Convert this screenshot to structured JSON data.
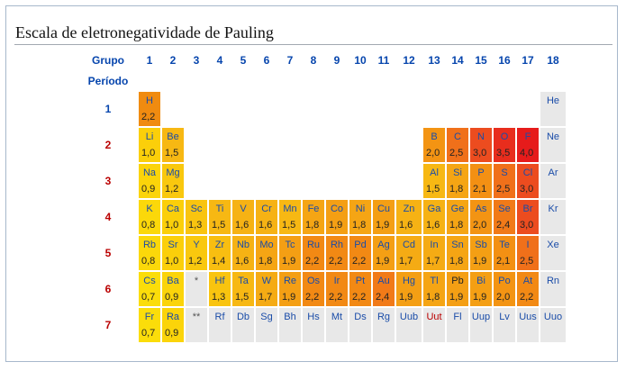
{
  "title": "Escala de eletronegatividade de Pauling",
  "group_header_label": "Grupo",
  "period_header_label": "Período",
  "groups": [
    "1",
    "2",
    "3",
    "4",
    "5",
    "6",
    "7",
    "8",
    "9",
    "10",
    "11",
    "12",
    "13",
    "14",
    "15",
    "16",
    "17",
    "18"
  ],
  "periods": [
    {
      "label": "1",
      "label_color": "#0645ad",
      "cells": [
        {
          "g": 1,
          "sym": "H",
          "val": "2,2",
          "color": "#f08b10"
        },
        {
          "g": 18,
          "sym": "He",
          "val": "",
          "color": "#e8e8e8"
        }
      ]
    },
    {
      "label": "2",
      "label_color": "#ba0000",
      "cells": [
        {
          "g": 1,
          "sym": "Li",
          "val": "1,0",
          "color": "#fbcf0a"
        },
        {
          "g": 2,
          "sym": "Be",
          "val": "1,5",
          "color": "#f7b813"
        },
        {
          "g": 13,
          "sym": "B",
          "val": "2,0",
          "color": "#f39413"
        },
        {
          "g": 14,
          "sym": "C",
          "val": "2,5",
          "color": "#f0701a"
        },
        {
          "g": 15,
          "sym": "N",
          "val": "3,0",
          "color": "#ec4c1f"
        },
        {
          "g": 16,
          "sym": "O",
          "val": "3,5",
          "color": "#e82d1d"
        },
        {
          "g": 17,
          "sym": "F",
          "val": "4,0",
          "color": "#e61b1b"
        },
        {
          "g": 18,
          "sym": "Ne",
          "val": "",
          "color": "#e8e8e8"
        }
      ]
    },
    {
      "label": "3",
      "label_color": "#ba0000",
      "cells": [
        {
          "g": 1,
          "sym": "Na",
          "val": "0,9",
          "color": "#fbd40a"
        },
        {
          "g": 2,
          "sym": "Mg",
          "val": "1,2",
          "color": "#f9c80e"
        },
        {
          "g": 13,
          "sym": "Al",
          "val": "1,5",
          "color": "#f7b813"
        },
        {
          "g": 14,
          "sym": "Si",
          "val": "1,8",
          "color": "#f5a514"
        },
        {
          "g": 15,
          "sym": "P",
          "val": "2,1",
          "color": "#f39013"
        },
        {
          "g": 16,
          "sym": "S",
          "val": "2,5",
          "color": "#f0701a"
        },
        {
          "g": 17,
          "sym": "Cl",
          "val": "3,0",
          "color": "#ec4c1f"
        },
        {
          "g": 18,
          "sym": "Ar",
          "val": "",
          "color": "#e8e8e8"
        }
      ]
    },
    {
      "label": "4",
      "label_color": "#ba0000",
      "cells": [
        {
          "g": 1,
          "sym": "K",
          "val": "0,8",
          "color": "#fbd80a"
        },
        {
          "g": 2,
          "sym": "Ca",
          "val": "1,0",
          "color": "#fbcf0a"
        },
        {
          "g": 3,
          "sym": "Sc",
          "val": "1,3",
          "color": "#f9c40f"
        },
        {
          "g": 4,
          "sym": "Ti",
          "val": "1,5",
          "color": "#f7b813"
        },
        {
          "g": 5,
          "sym": "V",
          "val": "1,6",
          "color": "#f6b214"
        },
        {
          "g": 6,
          "sym": "Cr",
          "val": "1,6",
          "color": "#f6b214"
        },
        {
          "g": 7,
          "sym": "Mn",
          "val": "1,5",
          "color": "#f7b813"
        },
        {
          "g": 8,
          "sym": "Fe",
          "val": "1,8",
          "color": "#f5a514"
        },
        {
          "g": 9,
          "sym": "Co",
          "val": "1,9",
          "color": "#f49f14"
        },
        {
          "g": 10,
          "sym": "Ni",
          "val": "1,8",
          "color": "#f5a514"
        },
        {
          "g": 11,
          "sym": "Cu",
          "val": "1,9",
          "color": "#f49f14"
        },
        {
          "g": 12,
          "sym": "Zn",
          "val": "1,6",
          "color": "#f6b214"
        },
        {
          "g": 13,
          "sym": "Ga",
          "val": "1,6",
          "color": "#f6b214"
        },
        {
          "g": 14,
          "sym": "Ge",
          "val": "1,8",
          "color": "#f5a514"
        },
        {
          "g": 15,
          "sym": "As",
          "val": "2,0",
          "color": "#f39413"
        },
        {
          "g": 16,
          "sym": "Se",
          "val": "2,4",
          "color": "#f17a18"
        },
        {
          "g": 17,
          "sym": "Br",
          "val": "3,0",
          "color": "#ec4c1f"
        },
        {
          "g": 18,
          "sym": "Kr",
          "val": "",
          "color": "#e8e8e8"
        }
      ]
    },
    {
      "label": "5",
      "label_color": "#ba0000",
      "cells": [
        {
          "g": 1,
          "sym": "Rb",
          "val": "0,8",
          "color": "#fbd80a"
        },
        {
          "g": 2,
          "sym": "Sr",
          "val": "1,0",
          "color": "#fbcf0a"
        },
        {
          "g": 3,
          "sym": "Y",
          "val": "1,2",
          "color": "#f9c80e"
        },
        {
          "g": 4,
          "sym": "Zr",
          "val": "1,4",
          "color": "#f8be11"
        },
        {
          "g": 5,
          "sym": "Nb",
          "val": "1,6",
          "color": "#f6b214"
        },
        {
          "g": 6,
          "sym": "Mo",
          "val": "1,8",
          "color": "#f5a514"
        },
        {
          "g": 7,
          "sym": "Tc",
          "val": "1,9",
          "color": "#f49f14"
        },
        {
          "g": 8,
          "sym": "Ru",
          "val": "2,2",
          "color": "#f28914"
        },
        {
          "g": 9,
          "sym": "Rh",
          "val": "2,2",
          "color": "#f28914"
        },
        {
          "g": 10,
          "sym": "Pd",
          "val": "2,2",
          "color": "#f28914"
        },
        {
          "g": 11,
          "sym": "Ag",
          "val": "1,9",
          "color": "#f49f14"
        },
        {
          "g": 12,
          "sym": "Cd",
          "val": "1,7",
          "color": "#f5ab14"
        },
        {
          "g": 13,
          "sym": "In",
          "val": "1,7",
          "color": "#f5ab14"
        },
        {
          "g": 14,
          "sym": "Sn",
          "val": "1,8",
          "color": "#f5a514"
        },
        {
          "g": 15,
          "sym": "Sb",
          "val": "1,9",
          "color": "#f49f14"
        },
        {
          "g": 16,
          "sym": "Te",
          "val": "2,1",
          "color": "#f39013"
        },
        {
          "g": 17,
          "sym": "I",
          "val": "2,5",
          "color": "#f0701a"
        },
        {
          "g": 18,
          "sym": "Xe",
          "val": "",
          "color": "#e8e8e8"
        }
      ]
    },
    {
      "label": "6",
      "label_color": "#ba0000",
      "cells": [
        {
          "g": 1,
          "sym": "Cs",
          "val": "0,7",
          "color": "#fbdd0a"
        },
        {
          "g": 2,
          "sym": "Ba",
          "val": "0,9",
          "color": "#fbd40a"
        },
        {
          "g": 3,
          "sym": "*",
          "val": "",
          "color": "#e8e8e8",
          "star": true
        },
        {
          "g": 4,
          "sym": "Hf",
          "val": "1,3",
          "color": "#f9c40f"
        },
        {
          "g": 5,
          "sym": "Ta",
          "val": "1,5",
          "color": "#f7b813"
        },
        {
          "g": 6,
          "sym": "W",
          "val": "1,7",
          "color": "#f5ab14"
        },
        {
          "g": 7,
          "sym": "Re",
          "val": "1,9",
          "color": "#f49f14"
        },
        {
          "g": 8,
          "sym": "Os",
          "val": "2,2",
          "color": "#f28914"
        },
        {
          "g": 9,
          "sym": "Ir",
          "val": "2,2",
          "color": "#f28914"
        },
        {
          "g": 10,
          "sym": "Pt",
          "val": "2,2",
          "color": "#f28914"
        },
        {
          "g": 11,
          "sym": "Au",
          "val": "2,4",
          "color": "#f17a18"
        },
        {
          "g": 12,
          "sym": "Hg",
          "val": "1,9",
          "color": "#f49f14"
        },
        {
          "g": 13,
          "sym": "Tl",
          "val": "1,8",
          "color": "#f5a514"
        },
        {
          "g": 14,
          "sym": "Pb",
          "val": "1,9",
          "color": "#f49f14",
          "sym_black": true
        },
        {
          "g": 15,
          "sym": "Bi",
          "val": "1,9",
          "color": "#f49f14"
        },
        {
          "g": 16,
          "sym": "Po",
          "val": "2,0",
          "color": "#f39413"
        },
        {
          "g": 17,
          "sym": "At",
          "val": "2,2",
          "color": "#f28914"
        },
        {
          "g": 18,
          "sym": "Rn",
          "val": "",
          "color": "#e8e8e8"
        }
      ]
    },
    {
      "label": "7",
      "label_color": "#ba0000",
      "cells": [
        {
          "g": 1,
          "sym": "Fr",
          "val": "0,7",
          "color": "#fbdd0a"
        },
        {
          "g": 2,
          "sym": "Ra",
          "val": "0,9",
          "color": "#fbd40a"
        },
        {
          "g": 3,
          "sym": "**",
          "val": "",
          "color": "#e8e8e8",
          "star": true
        },
        {
          "g": 4,
          "sym": "Rf",
          "val": "",
          "color": "#e8e8e8"
        },
        {
          "g": 5,
          "sym": "Db",
          "val": "",
          "color": "#e8e8e8"
        },
        {
          "g": 6,
          "sym": "Sg",
          "val": "",
          "color": "#e8e8e8"
        },
        {
          "g": 7,
          "sym": "Bh",
          "val": "",
          "color": "#e8e8e8"
        },
        {
          "g": 8,
          "sym": "Hs",
          "val": "",
          "color": "#e8e8e8"
        },
        {
          "g": 9,
          "sym": "Mt",
          "val": "",
          "color": "#e8e8e8"
        },
        {
          "g": 10,
          "sym": "Ds",
          "val": "",
          "color": "#e8e8e8"
        },
        {
          "g": 11,
          "sym": "Rg",
          "val": "",
          "color": "#e8e8e8"
        },
        {
          "g": 12,
          "sym": "Uub",
          "val": "",
          "color": "#e8e8e8"
        },
        {
          "g": 13,
          "sym": "Uut",
          "val": "",
          "color": "#e8e8e8",
          "sym_red": true
        },
        {
          "g": 14,
          "sym": "Fl",
          "val": "",
          "color": "#e8e8e8"
        },
        {
          "g": 15,
          "sym": "Uup",
          "val": "",
          "color": "#e8e8e8"
        },
        {
          "g": 16,
          "sym": "Lv",
          "val": "",
          "color": "#e8e8e8"
        },
        {
          "g": 17,
          "sym": "Uus",
          "val": "",
          "color": "#e8e8e8"
        },
        {
          "g": 18,
          "sym": "Uuo",
          "val": "",
          "color": "#e8e8e8"
        }
      ]
    }
  ]
}
